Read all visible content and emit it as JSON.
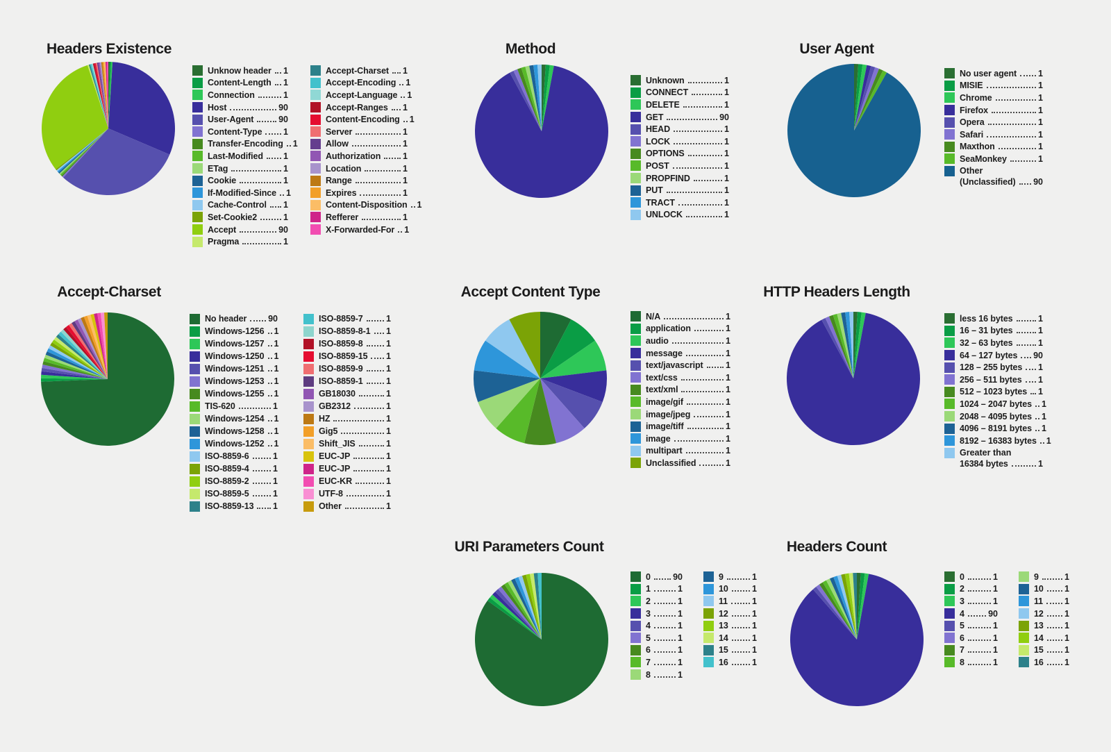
{
  "ui": {
    "background": "#f0f0ef",
    "title_color": "#1b1b1b",
    "legend_text_color": "#1c1c1c",
    "leader_dot_color": "#4a4a4a"
  },
  "chart_data": [
    {
      "id": "headers-existence",
      "type": "pie",
      "title": "Headers Existence",
      "legend_position": "right",
      "legend_columns": 2,
      "items": [
        {
          "label": "Unknow header",
          "value": 1,
          "color": "#2a6e32"
        },
        {
          "label": "Content-Length",
          "value": 1,
          "color": "#0a9d45"
        },
        {
          "label": "Connection",
          "value": 1,
          "color": "#2ec758"
        },
        {
          "label": "Host",
          "value": 90,
          "color": "#382e9b"
        },
        {
          "label": "User-Agent",
          "value": 90,
          "color": "#5650ae"
        },
        {
          "label": "Content-Type",
          "value": 1,
          "color": "#8173d1"
        },
        {
          "label": "Transfer-Encoding",
          "value": 1,
          "color": "#478a1f"
        },
        {
          "label": "Last-Modified",
          "value": 1,
          "color": "#58ba29"
        },
        {
          "label": "ETag",
          "value": 1,
          "color": "#9bd978"
        },
        {
          "label": "Cookie",
          "value": 1,
          "color": "#1d6295"
        },
        {
          "label": "If-Modified-Since",
          "value": 1,
          "color": "#2e96da"
        },
        {
          "label": "Cache-Control",
          "value": 1,
          "color": "#8fc8ef"
        },
        {
          "label": "Set-Cookie2",
          "value": 1,
          "color": "#7ba306"
        },
        {
          "label": "Accept",
          "value": 90,
          "color": "#90ce10"
        },
        {
          "label": "Pragma",
          "value": 1,
          "color": "#c5e96c"
        },
        {
          "label": "Accept-Charset",
          "value": 1,
          "color": "#2d818a"
        },
        {
          "label": "Accept-Encoding",
          "value": 1,
          "color": "#43c1cc"
        },
        {
          "label": "Accept-Language",
          "value": 1,
          "color": "#90d8d5"
        },
        {
          "label": "Accept-Ranges",
          "value": 1,
          "color": "#b11126"
        },
        {
          "label": "Content-Encoding",
          "value": 1,
          "color": "#e50d30"
        },
        {
          "label": "Server",
          "value": 1,
          "color": "#ef6e71"
        },
        {
          "label": "Allow",
          "value": 1,
          "color": "#653e8e"
        },
        {
          "label": "Authorization",
          "value": 1,
          "color": "#9156b3"
        },
        {
          "label": "Location",
          "value": 1,
          "color": "#a893cc"
        },
        {
          "label": "Range",
          "value": 1,
          "color": "#bd7914"
        },
        {
          "label": "Expires",
          "value": 1,
          "color": "#f29f28"
        },
        {
          "label": "Content-Disposition",
          "value": 1,
          "color": "#fbbd66"
        },
        {
          "label": "Refferer",
          "value": 1,
          "color": "#cf2489"
        },
        {
          "label": "X-Forwarded-For",
          "value": 1,
          "color": "#f24db1"
        }
      ]
    },
    {
      "id": "method",
      "type": "pie",
      "title": "Method",
      "legend_position": "right",
      "legend_columns": 1,
      "items": [
        {
          "label": "Unknown",
          "value": 1,
          "color": "#2a6e32"
        },
        {
          "label": "CONNECT",
          "value": 1,
          "color": "#0a9d45"
        },
        {
          "label": "DELETE",
          "value": 1,
          "color": "#2ec758"
        },
        {
          "label": "GET",
          "value": 90,
          "color": "#382e9b"
        },
        {
          "label": "HEAD",
          "value": 1,
          "color": "#5650ae"
        },
        {
          "label": "LOCK",
          "value": 1,
          "color": "#8173d1"
        },
        {
          "label": "OPTIONS",
          "value": 1,
          "color": "#478a1f"
        },
        {
          "label": "POST",
          "value": 1,
          "color": "#58ba29"
        },
        {
          "label": "PROPFIND",
          "value": 1,
          "color": "#9bd978"
        },
        {
          "label": "PUT",
          "value": 1,
          "color": "#1d6295"
        },
        {
          "label": "TRACT",
          "value": 1,
          "color": "#2e96da"
        },
        {
          "label": "UNLOCK",
          "value": 1,
          "color": "#8fc8ef"
        }
      ]
    },
    {
      "id": "user-agent",
      "type": "pie",
      "title": "User Agent",
      "legend_position": "right",
      "legend_columns": 1,
      "items": [
        {
          "label": "No user agent",
          "value": 1,
          "color": "#2a6e32"
        },
        {
          "label": "MISIE",
          "value": 1,
          "color": "#0a9d45"
        },
        {
          "label": "Chrome",
          "value": 1,
          "color": "#2ec758"
        },
        {
          "label": "Firefox",
          "value": 1,
          "color": "#382e9b"
        },
        {
          "label": "Opera",
          "value": 1,
          "color": "#5650ae"
        },
        {
          "label": "Safari",
          "value": 1,
          "color": "#8173d1"
        },
        {
          "label": "Maxthon",
          "value": 1,
          "color": "#478a1f"
        },
        {
          "label": "SeaMonkey",
          "value": 1,
          "color": "#58ba29"
        },
        {
          "label": "Other (Unclassified)",
          "label_lines": [
            "Other",
            "(Unclassified)"
          ],
          "value": 90,
          "color": "#176190"
        }
      ]
    },
    {
      "id": "accept-charset",
      "type": "pie",
      "title": "Accept-Charset",
      "legend_position": "right",
      "legend_columns": 2,
      "items": [
        {
          "label": "No header",
          "value": 90,
          "color": "#1e6b33"
        },
        {
          "label": "Windows-1256",
          "value": 1,
          "color": "#0a9d45"
        },
        {
          "label": "Windows-1257",
          "value": 1,
          "color": "#2ec758"
        },
        {
          "label": "Windows-1250",
          "value": 1,
          "color": "#382e9b"
        },
        {
          "label": "Windows-1251",
          "value": 1,
          "color": "#5650ae"
        },
        {
          "label": "Windows-1253",
          "value": 1,
          "color": "#8173d1"
        },
        {
          "label": "Windows-1255",
          "value": 1,
          "color": "#478a1f"
        },
        {
          "label": "TIS-620",
          "value": 1,
          "color": "#58ba29"
        },
        {
          "label": "Windows-1254",
          "value": 1,
          "color": "#9bd978"
        },
        {
          "label": "Windows-1258",
          "value": 1,
          "color": "#1d6295"
        },
        {
          "label": "Windows-1252",
          "value": 1,
          "color": "#2e96da"
        },
        {
          "label": "ISO-8859-6",
          "value": 1,
          "color": "#8fc8ef"
        },
        {
          "label": "ISO-8859-4",
          "value": 1,
          "color": "#7ba306"
        },
        {
          "label": "ISO-8859-2",
          "value": 1,
          "color": "#90ce10"
        },
        {
          "label": "ISO-8859-5",
          "value": 1,
          "color": "#c5e96c"
        },
        {
          "label": "ISO-8859-13",
          "value": 1,
          "color": "#2d818a"
        },
        {
          "label": "ISO-8859-7",
          "value": 1,
          "color": "#43c1cc"
        },
        {
          "label": "ISO-8859-8-1",
          "value": 1,
          "color": "#8ed5cd"
        },
        {
          "label": "ISO-8859-8",
          "value": 1,
          "color": "#b11126"
        },
        {
          "label": "ISO-8859-15",
          "value": 1,
          "color": "#e50d30"
        },
        {
          "label": "ISO-8859-9",
          "value": 1,
          "color": "#ef6e71"
        },
        {
          "label": "ISO-8859-1",
          "value": 1,
          "color": "#5e3c80"
        },
        {
          "label": "GB18030",
          "value": 1,
          "color": "#9156b3"
        },
        {
          "label": "GB2312",
          "value": 1,
          "color": "#a893cc"
        },
        {
          "label": "HZ",
          "value": 1,
          "color": "#bd7914"
        },
        {
          "label": "Gig5",
          "value": 1,
          "color": "#f29f28"
        },
        {
          "label": "Shift_JIS",
          "value": 1,
          "color": "#fbbd66"
        },
        {
          "label": "EUC-JP",
          "value": 1,
          "color": "#d8c30c"
        },
        {
          "label": "EUC-JP",
          "value": 1,
          "color": "#cf2489"
        },
        {
          "label": "EUC-KR",
          "value": 1,
          "color": "#f24db1"
        },
        {
          "label": "UTF-8",
          "value": 1,
          "color": "#f98fd3"
        },
        {
          "label": "Other",
          "value": 1,
          "color": "#c79b0d"
        }
      ]
    },
    {
      "id": "accept-content-type",
      "type": "pie",
      "title": "Accept Content Type",
      "legend_position": "right",
      "legend_columns": 1,
      "items": [
        {
          "label": "N/A",
          "value": 1,
          "color": "#1e6b33"
        },
        {
          "label": "application",
          "value": 1,
          "color": "#0a9d45"
        },
        {
          "label": "audio",
          "value": 1,
          "color": "#2ec758"
        },
        {
          "label": "message",
          "value": 1,
          "color": "#382e9b"
        },
        {
          "label": "text/javascript",
          "value": 1,
          "color": "#5650ae"
        },
        {
          "label": "text/css",
          "value": 1,
          "color": "#8173d1"
        },
        {
          "label": "text/xml",
          "value": 1,
          "color": "#478a1f"
        },
        {
          "label": "image/gif",
          "value": 1,
          "color": "#58ba29"
        },
        {
          "label": "image/jpeg",
          "value": 1,
          "color": "#9bd978"
        },
        {
          "label": "image/tiff",
          "value": 1,
          "color": "#1d6295"
        },
        {
          "label": "image",
          "value": 1,
          "color": "#2e96da"
        },
        {
          "label": "multipart",
          "value": 1,
          "color": "#8fc8ef"
        },
        {
          "label": "Unclassified",
          "value": 1,
          "color": "#7ba306"
        }
      ]
    },
    {
      "id": "http-headers-length",
      "type": "pie",
      "title": "HTTP Headers Length",
      "legend_position": "right",
      "legend_columns": 1,
      "items": [
        {
          "label": "less 16 bytes",
          "value": 1,
          "color": "#2a6e32"
        },
        {
          "label": "16 – 31 bytes",
          "value": 1,
          "color": "#0a9d45"
        },
        {
          "label": "32 – 63 bytes",
          "value": 1,
          "color": "#2ec758"
        },
        {
          "label": "64 – 127 bytes",
          "value": 90,
          "color": "#382e9b"
        },
        {
          "label": "128 – 255 bytes",
          "value": 1,
          "color": "#5650ae"
        },
        {
          "label": "256 – 511 bytes",
          "value": 1,
          "color": "#8173d1"
        },
        {
          "label": "512 – 1023 bytes",
          "value": 1,
          "color": "#478a1f"
        },
        {
          "label": "1024 – 2047 bytes",
          "value": 1,
          "color": "#58ba29"
        },
        {
          "label": "2048 – 4095 bytes",
          "value": 1,
          "color": "#9bd978"
        },
        {
          "label": "4096 – 8191 bytes",
          "value": 1,
          "color": "#1d6295"
        },
        {
          "label": "8192 – 16383 bytes",
          "value": 1,
          "color": "#2e96da"
        },
        {
          "label": "Greater than 16384 bytes",
          "label_lines": [
            "Greater than",
            "16384 bytes"
          ],
          "value": 1,
          "color": "#8fc8ef"
        }
      ]
    },
    {
      "id": "uri-parameters-count",
      "type": "pie",
      "title": "URI Parameters Count",
      "legend_position": "right",
      "legend_columns": 2,
      "items": [
        {
          "label": "0",
          "value": 90,
          "color": "#1e6b33"
        },
        {
          "label": "1",
          "value": 1,
          "color": "#0a9d45"
        },
        {
          "label": "2",
          "value": 1,
          "color": "#2ec758"
        },
        {
          "label": "3",
          "value": 1,
          "color": "#382e9b"
        },
        {
          "label": "4",
          "value": 1,
          "color": "#5650ae"
        },
        {
          "label": "5",
          "value": 1,
          "color": "#8173d1"
        },
        {
          "label": "6",
          "value": 1,
          "color": "#478a1f"
        },
        {
          "label": "7",
          "value": 1,
          "color": "#58ba29"
        },
        {
          "label": "8",
          "value": 1,
          "color": "#9bd978"
        },
        {
          "label": "9",
          "value": 1,
          "color": "#1d6295"
        },
        {
          "label": "10",
          "value": 1,
          "color": "#2e96da"
        },
        {
          "label": "11",
          "value": 1,
          "color": "#8fc8ef"
        },
        {
          "label": "12",
          "value": 1,
          "color": "#7ba306"
        },
        {
          "label": "13",
          "value": 1,
          "color": "#90ce10"
        },
        {
          "label": "14",
          "value": 1,
          "color": "#c5e96c"
        },
        {
          "label": "15",
          "value": 1,
          "color": "#2d818a"
        },
        {
          "label": "16",
          "value": 1,
          "color": "#43c1cc"
        }
      ]
    },
    {
      "id": "headers-count",
      "type": "pie",
      "title": "Headers Count",
      "legend_position": "right",
      "legend_columns": 2,
      "items": [
        {
          "label": "0",
          "value": 1,
          "color": "#2a6e32"
        },
        {
          "label": "2",
          "value": 1,
          "color": "#0a9d45"
        },
        {
          "label": "3",
          "value": 1,
          "color": "#2ec758"
        },
        {
          "label": "4",
          "value": 90,
          "color": "#382e9b"
        },
        {
          "label": "5",
          "value": 1,
          "color": "#5650ae"
        },
        {
          "label": "6",
          "value": 1,
          "color": "#8173d1"
        },
        {
          "label": "7",
          "value": 1,
          "color": "#478a1f"
        },
        {
          "label": "8",
          "value": 1,
          "color": "#58ba29"
        },
        {
          "label": "9",
          "value": 1,
          "color": "#9bd978"
        },
        {
          "label": "10",
          "value": 1,
          "color": "#1d6295"
        },
        {
          "label": "11",
          "value": 1,
          "color": "#2e96da"
        },
        {
          "label": "12",
          "value": 1,
          "color": "#8fc8ef"
        },
        {
          "label": "13",
          "value": 1,
          "color": "#7ba306"
        },
        {
          "label": "14",
          "value": 1,
          "color": "#90ce10"
        },
        {
          "label": "15",
          "value": 1,
          "color": "#c5e96c"
        },
        {
          "label": "16",
          "value": 1,
          "color": "#2d818a"
        }
      ]
    }
  ]
}
